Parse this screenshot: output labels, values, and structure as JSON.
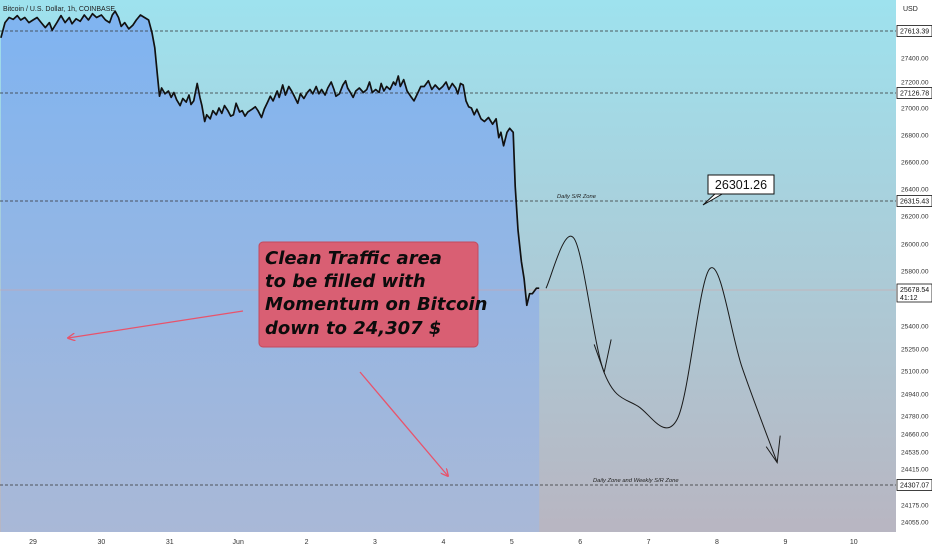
{
  "symbol_title": "Bitcoin / U.S. Dollar, 1h, COINBASE",
  "currency": "USD",
  "colors": {
    "price_line": "#111111",
    "arrow_red": "#e8536b",
    "note_bg": "#d95f73",
    "note_border": "#c44a5e",
    "note_text": "#0c0c0c",
    "bg_top": "#9ee2ee",
    "bg_bottom": "#b9b4c0",
    "fill_top": "#7fb4f1",
    "fill_bottom": "#a9b8d7"
  },
  "note": {
    "lines": [
      "Clean Traffic area",
      "to be filled with",
      "Momentum on Bitcoin",
      "down to 24,307 $"
    ]
  },
  "callout_value": "26301.26",
  "current_price": {
    "value": "25678.54",
    "countdown": "41:12"
  },
  "chart_data": {
    "type": "line",
    "title": "Bitcoin / U.S. Dollar, 1h, COINBASE",
    "ylabel": "USD",
    "ylim": [
      24040,
      27800
    ],
    "y_scale": "nonlinear",
    "price_scale_ticks": [
      {
        "value": 27400,
        "label": "27400.00"
      },
      {
        "value": 27200,
        "label": "27200.00"
      },
      {
        "value": 27000,
        "label": "27000.00"
      },
      {
        "value": 26800,
        "label": "26800.00"
      },
      {
        "value": 26600,
        "label": "26600.00"
      },
      {
        "value": 26400,
        "label": "26400.00"
      },
      {
        "value": 26200,
        "label": "26200.00"
      },
      {
        "value": 26000,
        "label": "26000.00"
      },
      {
        "value": 25800,
        "label": "25800.00"
      },
      {
        "value": 25400,
        "label": "25400.00"
      },
      {
        "value": 25250,
        "label": "25250.00"
      },
      {
        "value": 25100,
        "label": "25100.00"
      },
      {
        "value": 24940,
        "label": "24940.00"
      },
      {
        "value": 24780,
        "label": "24780.00"
      },
      {
        "value": 24660,
        "label": "24660.00"
      },
      {
        "value": 24535,
        "label": "24535.00"
      },
      {
        "value": 24415,
        "label": "24415.00"
      },
      {
        "value": 24175,
        "label": "24175.00"
      },
      {
        "value": 24055,
        "label": "24055.00"
      }
    ],
    "time_ticks": [
      {
        "t": 0,
        "label": "29"
      },
      {
        "t": 1,
        "label": "30"
      },
      {
        "t": 2,
        "label": "31"
      },
      {
        "t": 3,
        "label": "Jun"
      },
      {
        "t": 4,
        "label": "2"
      },
      {
        "t": 5,
        "label": "3"
      },
      {
        "t": 6,
        "label": "4"
      },
      {
        "t": 7,
        "label": "5"
      },
      {
        "t": 8,
        "label": "6"
      },
      {
        "t": 9,
        "label": "7"
      },
      {
        "t": 10,
        "label": "8"
      },
      {
        "t": 11,
        "label": "9"
      },
      {
        "t": 12,
        "label": "10"
      }
    ],
    "levels": [
      {
        "value": 27613.39,
        "label": "27613.39",
        "zone_label": ""
      },
      {
        "value": 27126.78,
        "label": "27126.78",
        "zone_label": ""
      },
      {
        "value": 26315.43,
        "label": "26315.43",
        "zone_label": "Daily S/R Zone"
      },
      {
        "value": 24307.07,
        "label": "24307.07",
        "zone_label": "Daily Zone and Weekly S/R Zone"
      }
    ],
    "series": [
      {
        "points": [
          [
            -0.47,
            27560
          ],
          [
            -0.41,
            27680
          ],
          [
            -0.35,
            27720
          ],
          [
            -0.29,
            27705
          ],
          [
            -0.23,
            27735
          ],
          [
            -0.18,
            27700
          ],
          [
            -0.12,
            27720
          ],
          [
            -0.06,
            27680
          ],
          [
            0.0,
            27700
          ],
          [
            0.06,
            27720
          ],
          [
            0.12,
            27680
          ],
          [
            0.18,
            27640
          ],
          [
            0.24,
            27680
          ],
          [
            0.28,
            27620
          ],
          [
            0.35,
            27680
          ],
          [
            0.41,
            27735
          ],
          [
            0.47,
            27680
          ],
          [
            0.53,
            27720
          ],
          [
            0.57,
            27670
          ],
          [
            0.63,
            27710
          ],
          [
            0.69,
            27690
          ],
          [
            0.75,
            27740
          ],
          [
            0.81,
            27700
          ],
          [
            0.87,
            27750
          ],
          [
            0.93,
            27720
          ],
          [
            1.0,
            27740
          ],
          [
            1.06,
            27700
          ],
          [
            1.12,
            27680
          ],
          [
            1.16,
            27740
          ],
          [
            1.2,
            27770
          ],
          [
            1.25,
            27720
          ],
          [
            1.29,
            27650
          ],
          [
            1.34,
            27680
          ],
          [
            1.4,
            27630
          ],
          [
            1.46,
            27660
          ],
          [
            1.51,
            27700
          ],
          [
            1.57,
            27740
          ],
          [
            1.63,
            27720
          ],
          [
            1.69,
            27700
          ],
          [
            1.74,
            27600
          ],
          [
            1.78,
            27480
          ],
          [
            1.82,
            27250
          ],
          [
            1.85,
            27100
          ],
          [
            1.88,
            27160
          ],
          [
            1.93,
            27120
          ],
          [
            1.98,
            27140
          ],
          [
            2.02,
            27090
          ],
          [
            2.06,
            27130
          ],
          [
            2.1,
            27070
          ],
          [
            2.15,
            27020
          ],
          [
            2.19,
            27080
          ],
          [
            2.24,
            27050
          ],
          [
            2.28,
            27110
          ],
          [
            2.31,
            27030
          ],
          [
            2.35,
            27060
          ],
          [
            2.4,
            27190
          ],
          [
            2.44,
            27090
          ],
          [
            2.47,
            27020
          ],
          [
            2.51,
            26900
          ],
          [
            2.54,
            26950
          ],
          [
            2.59,
            26920
          ],
          [
            2.63,
            26980
          ],
          [
            2.68,
            26950
          ],
          [
            2.72,
            27000
          ],
          [
            2.76,
            26960
          ],
          [
            2.8,
            27020
          ],
          [
            2.85,
            26980
          ],
          [
            2.89,
            26940
          ],
          [
            2.93,
            26950
          ],
          [
            2.97,
            27040
          ],
          [
            3.02,
            26970
          ],
          [
            3.06,
            26980
          ],
          [
            3.1,
            26940
          ],
          [
            3.14,
            26970
          ],
          [
            3.2,
            26990
          ],
          [
            3.25,
            27010
          ],
          [
            3.29,
            26980
          ],
          [
            3.34,
            26930
          ],
          [
            3.38,
            26990
          ],
          [
            3.43,
            27050
          ],
          [
            3.47,
            27100
          ],
          [
            3.51,
            27060
          ],
          [
            3.57,
            27140
          ],
          [
            3.6,
            27090
          ],
          [
            3.65,
            27180
          ],
          [
            3.69,
            27110
          ],
          [
            3.74,
            27170
          ],
          [
            3.78,
            27140
          ],
          [
            3.82,
            27100
          ],
          [
            3.87,
            27040
          ],
          [
            3.91,
            27120
          ],
          [
            3.96,
            27080
          ],
          [
            4.01,
            27130
          ],
          [
            4.05,
            27150
          ],
          [
            4.09,
            27120
          ],
          [
            4.14,
            27170
          ],
          [
            4.18,
            27120
          ],
          [
            4.22,
            27150
          ],
          [
            4.27,
            27110
          ],
          [
            4.31,
            27160
          ],
          [
            4.36,
            27200
          ],
          [
            4.4,
            27150
          ],
          [
            4.43,
            27100
          ],
          [
            4.48,
            27120
          ],
          [
            4.53,
            27180
          ],
          [
            4.57,
            27210
          ],
          [
            4.6,
            27160
          ],
          [
            4.64,
            27130
          ],
          [
            4.68,
            27090
          ],
          [
            4.72,
            27140
          ],
          [
            4.77,
            27160
          ],
          [
            4.83,
            27130
          ],
          [
            4.88,
            27150
          ],
          [
            4.92,
            27200
          ],
          [
            4.96,
            27130
          ],
          [
            5.01,
            27150
          ],
          [
            5.06,
            27130
          ],
          [
            5.09,
            27190
          ],
          [
            5.13,
            27140
          ],
          [
            5.17,
            27170
          ],
          [
            5.22,
            27150
          ],
          [
            5.27,
            27200
          ],
          [
            5.3,
            27180
          ],
          [
            5.34,
            27250
          ],
          [
            5.37,
            27170
          ],
          [
            5.42,
            27220
          ],
          [
            5.47,
            27140
          ],
          [
            5.52,
            27100
          ],
          [
            5.57,
            27060
          ],
          [
            5.62,
            27120
          ],
          [
            5.67,
            27170
          ],
          [
            5.72,
            27170
          ],
          [
            5.78,
            27210
          ],
          [
            5.83,
            27150
          ],
          [
            5.88,
            27180
          ],
          [
            5.94,
            27150
          ],
          [
            5.99,
            27170
          ],
          [
            6.04,
            27200
          ],
          [
            6.08,
            27150
          ],
          [
            6.13,
            27190
          ],
          [
            6.18,
            27160
          ],
          [
            6.21,
            27120
          ],
          [
            6.25,
            27190
          ],
          [
            6.29,
            27180
          ],
          [
            6.33,
            27060
          ],
          [
            6.37,
            27010
          ],
          [
            6.41,
            27000
          ],
          [
            6.45,
            26950
          ],
          [
            6.49,
            26990
          ],
          [
            6.55,
            26920
          ],
          [
            6.6,
            26900
          ],
          [
            6.66,
            26930
          ],
          [
            6.72,
            26880
          ],
          [
            6.77,
            26920
          ],
          [
            6.81,
            26780
          ],
          [
            6.84,
            26820
          ],
          [
            6.88,
            26720
          ],
          [
            6.93,
            26820
          ],
          [
            6.97,
            26850
          ],
          [
            7.02,
            26820
          ],
          [
            7.05,
            26420
          ],
          [
            7.09,
            26100
          ],
          [
            7.14,
            25870
          ],
          [
            7.18,
            25750
          ],
          [
            7.22,
            25560
          ],
          [
            7.26,
            25650
          ],
          [
            7.3,
            25650
          ],
          [
            7.36,
            25690
          ],
          [
            7.4,
            25690
          ]
        ]
      }
    ],
    "projection": {
      "points": [
        [
          7.5,
          25690
        ],
        [
          7.91,
          26040
        ],
        [
          8.35,
          25090
        ],
        [
          8.85,
          24850
        ],
        [
          9.42,
          24760
        ],
        [
          9.9,
          25820
        ],
        [
          10.37,
          25120
        ],
        [
          10.88,
          24460
        ]
      ]
    },
    "annotations": [
      {
        "type": "callout",
        "text": "26301.26",
        "at": [
          10.2,
          26301.26
        ]
      }
    ]
  }
}
